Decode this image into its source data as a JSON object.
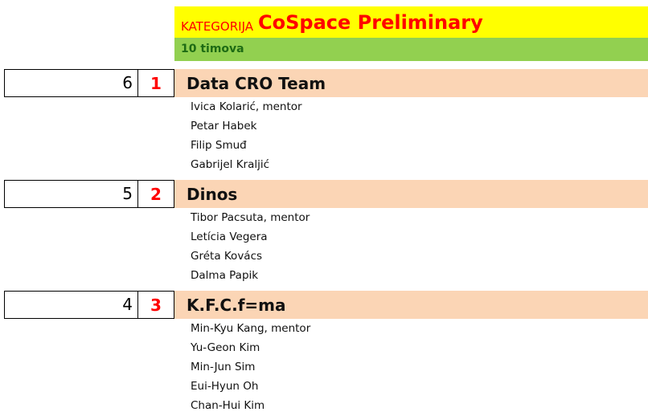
{
  "header": {
    "category_label": "KATEGORIJA",
    "title": "CoSpace Preliminary",
    "subtitle": "10 timova"
  },
  "teams": [
    {
      "score": 6,
      "rank": 1,
      "name": "Data CRO Team",
      "members": [
        "Ivica Kolarić, mentor",
        "Petar Habek",
        "Filip Smuđ",
        "Gabrijel Kraljić"
      ]
    },
    {
      "score": 5,
      "rank": 2,
      "name": "Dinos",
      "members": [
        "Tibor Pacsuta, mentor",
        "Letícia Vegera",
        "Gréta Kovács",
        "Dalma Papik"
      ]
    },
    {
      "score": 4,
      "rank": 3,
      "name": "K.F.C.f=ma",
      "members": [
        "Min-Kyu Kang, mentor",
        "Yu-Geon Kim",
        "Min-Jun Sim",
        "Eui-Hyun Oh",
        "Chan-Hui Kim"
      ]
    }
  ]
}
